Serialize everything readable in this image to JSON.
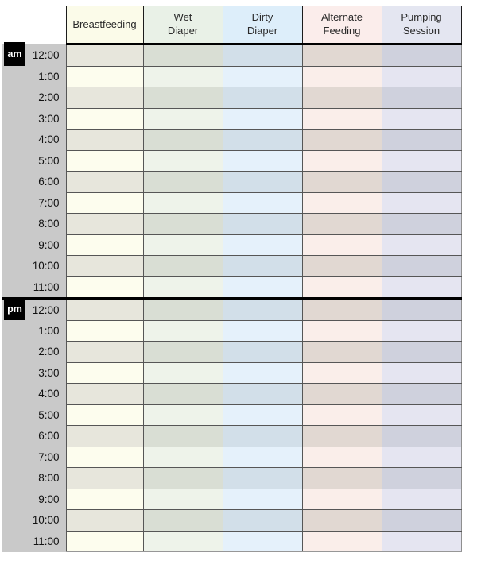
{
  "page": {
    "background": "#ffffff"
  },
  "table": {
    "time_column": {
      "bg": "#c9c9c9",
      "meridiem_bg": "#000000",
      "meridiem_color": "#ffffff"
    },
    "columns": [
      {
        "id": "breastfeeding",
        "label": "Breastfeeding",
        "header_bg": "#fbfbe9",
        "row_light": "#fdfdee",
        "row_dark": "#e7e6dc"
      },
      {
        "id": "wet-diaper",
        "label": "Wet\nDiaper",
        "header_bg": "#e9f1e7",
        "row_light": "#eef3ea",
        "row_dark": "#d9ded4"
      },
      {
        "id": "dirty-diaper",
        "label": "Dirty\nDiaper",
        "header_bg": "#ddeefa",
        "row_light": "#e5f1fb",
        "row_dark": "#d2dfe9"
      },
      {
        "id": "alternate-feeding",
        "label": "Alternate\nFeeding",
        "header_bg": "#fbedeb",
        "row_light": "#faeeea",
        "row_dark": "#e1d8d2"
      },
      {
        "id": "pumping-session",
        "label": "Pumping\nSession",
        "header_bg": "#e4e6f1",
        "row_light": "#e5e5f1",
        "row_dark": "#cfd1dd"
      }
    ],
    "sections": [
      {
        "meridiem": "am",
        "times": [
          "12:00",
          "1:00",
          "2:00",
          "3:00",
          "4:00",
          "5:00",
          "6:00",
          "7:00",
          "8:00",
          "9:00",
          "10:00",
          "11:00"
        ]
      },
      {
        "meridiem": "pm",
        "times": [
          "12:00",
          "1:00",
          "2:00",
          "3:00",
          "4:00",
          "5:00",
          "6:00",
          "7:00",
          "8:00",
          "9:00",
          "10:00",
          "11:00"
        ]
      }
    ]
  }
}
